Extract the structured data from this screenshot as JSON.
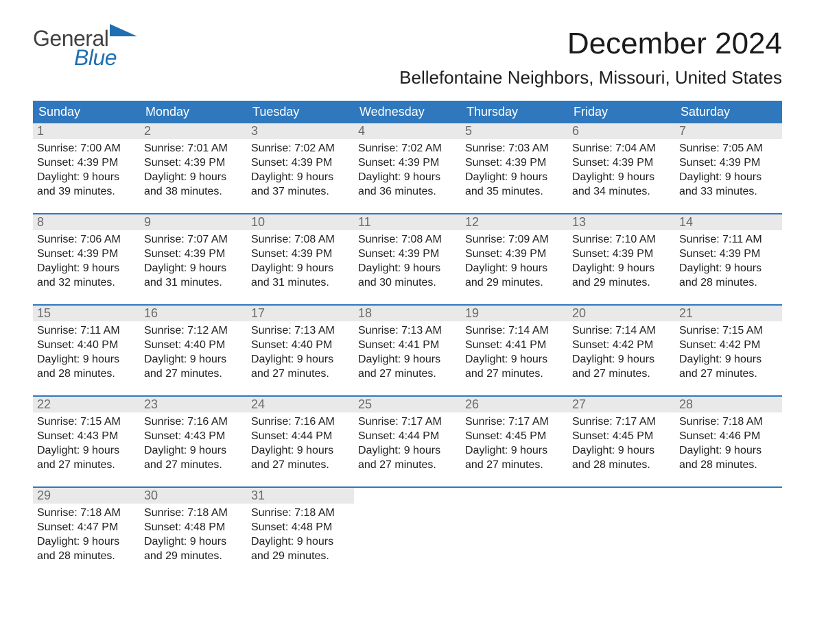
{
  "brand": {
    "word1": "General",
    "word2": "Blue",
    "brand_color": "#1f6fb2"
  },
  "header": {
    "title": "December 2024",
    "location": "Bellefontaine Neighbors, Missouri, United States"
  },
  "calendar": {
    "header_bg": "#2f78bd",
    "header_fg": "#ffffff",
    "daynum_bg": "#e9e9e9",
    "daynum_fg": "#6a6a6a",
    "rule_color": "#2f78bd",
    "columns": [
      "Sunday",
      "Monday",
      "Tuesday",
      "Wednesday",
      "Thursday",
      "Friday",
      "Saturday"
    ],
    "weeks": [
      [
        {
          "n": "1",
          "sunrise": "7:00 AM",
          "sunset": "4:39 PM",
          "dl1": "9 hours",
          "dl2": "and 39 minutes."
        },
        {
          "n": "2",
          "sunrise": "7:01 AM",
          "sunset": "4:39 PM",
          "dl1": "9 hours",
          "dl2": "and 38 minutes."
        },
        {
          "n": "3",
          "sunrise": "7:02 AM",
          "sunset": "4:39 PM",
          "dl1": "9 hours",
          "dl2": "and 37 minutes."
        },
        {
          "n": "4",
          "sunrise": "7:02 AM",
          "sunset": "4:39 PM",
          "dl1": "9 hours",
          "dl2": "and 36 minutes."
        },
        {
          "n": "5",
          "sunrise": "7:03 AM",
          "sunset": "4:39 PM",
          "dl1": "9 hours",
          "dl2": "and 35 minutes."
        },
        {
          "n": "6",
          "sunrise": "7:04 AM",
          "sunset": "4:39 PM",
          "dl1": "9 hours",
          "dl2": "and 34 minutes."
        },
        {
          "n": "7",
          "sunrise": "7:05 AM",
          "sunset": "4:39 PM",
          "dl1": "9 hours",
          "dl2": "and 33 minutes."
        }
      ],
      [
        {
          "n": "8",
          "sunrise": "7:06 AM",
          "sunset": "4:39 PM",
          "dl1": "9 hours",
          "dl2": "and 32 minutes."
        },
        {
          "n": "9",
          "sunrise": "7:07 AM",
          "sunset": "4:39 PM",
          "dl1": "9 hours",
          "dl2": "and 31 minutes."
        },
        {
          "n": "10",
          "sunrise": "7:08 AM",
          "sunset": "4:39 PM",
          "dl1": "9 hours",
          "dl2": "and 31 minutes."
        },
        {
          "n": "11",
          "sunrise": "7:08 AM",
          "sunset": "4:39 PM",
          "dl1": "9 hours",
          "dl2": "and 30 minutes."
        },
        {
          "n": "12",
          "sunrise": "7:09 AM",
          "sunset": "4:39 PM",
          "dl1": "9 hours",
          "dl2": "and 29 minutes."
        },
        {
          "n": "13",
          "sunrise": "7:10 AM",
          "sunset": "4:39 PM",
          "dl1": "9 hours",
          "dl2": "and 29 minutes."
        },
        {
          "n": "14",
          "sunrise": "7:11 AM",
          "sunset": "4:39 PM",
          "dl1": "9 hours",
          "dl2": "and 28 minutes."
        }
      ],
      [
        {
          "n": "15",
          "sunrise": "7:11 AM",
          "sunset": "4:40 PM",
          "dl1": "9 hours",
          "dl2": "and 28 minutes."
        },
        {
          "n": "16",
          "sunrise": "7:12 AM",
          "sunset": "4:40 PM",
          "dl1": "9 hours",
          "dl2": "and 27 minutes."
        },
        {
          "n": "17",
          "sunrise": "7:13 AM",
          "sunset": "4:40 PM",
          "dl1": "9 hours",
          "dl2": "and 27 minutes."
        },
        {
          "n": "18",
          "sunrise": "7:13 AM",
          "sunset": "4:41 PM",
          "dl1": "9 hours",
          "dl2": "and 27 minutes."
        },
        {
          "n": "19",
          "sunrise": "7:14 AM",
          "sunset": "4:41 PM",
          "dl1": "9 hours",
          "dl2": "and 27 minutes."
        },
        {
          "n": "20",
          "sunrise": "7:14 AM",
          "sunset": "4:42 PM",
          "dl1": "9 hours",
          "dl2": "and 27 minutes."
        },
        {
          "n": "21",
          "sunrise": "7:15 AM",
          "sunset": "4:42 PM",
          "dl1": "9 hours",
          "dl2": "and 27 minutes."
        }
      ],
      [
        {
          "n": "22",
          "sunrise": "7:15 AM",
          "sunset": "4:43 PM",
          "dl1": "9 hours",
          "dl2": "and 27 minutes."
        },
        {
          "n": "23",
          "sunrise": "7:16 AM",
          "sunset": "4:43 PM",
          "dl1": "9 hours",
          "dl2": "and 27 minutes."
        },
        {
          "n": "24",
          "sunrise": "7:16 AM",
          "sunset": "4:44 PM",
          "dl1": "9 hours",
          "dl2": "and 27 minutes."
        },
        {
          "n": "25",
          "sunrise": "7:17 AM",
          "sunset": "4:44 PM",
          "dl1": "9 hours",
          "dl2": "and 27 minutes."
        },
        {
          "n": "26",
          "sunrise": "7:17 AM",
          "sunset": "4:45 PM",
          "dl1": "9 hours",
          "dl2": "and 27 minutes."
        },
        {
          "n": "27",
          "sunrise": "7:17 AM",
          "sunset": "4:45 PM",
          "dl1": "9 hours",
          "dl2": "and 28 minutes."
        },
        {
          "n": "28",
          "sunrise": "7:18 AM",
          "sunset": "4:46 PM",
          "dl1": "9 hours",
          "dl2": "and 28 minutes."
        }
      ],
      [
        {
          "n": "29",
          "sunrise": "7:18 AM",
          "sunset": "4:47 PM",
          "dl1": "9 hours",
          "dl2": "and 28 minutes."
        },
        {
          "n": "30",
          "sunrise": "7:18 AM",
          "sunset": "4:48 PM",
          "dl1": "9 hours",
          "dl2": "and 29 minutes."
        },
        {
          "n": "31",
          "sunrise": "7:18 AM",
          "sunset": "4:48 PM",
          "dl1": "9 hours",
          "dl2": "and 29 minutes."
        },
        null,
        null,
        null,
        null
      ]
    ],
    "labels": {
      "sunrise": "Sunrise: ",
      "sunset": "Sunset: ",
      "daylight": "Daylight: "
    }
  }
}
